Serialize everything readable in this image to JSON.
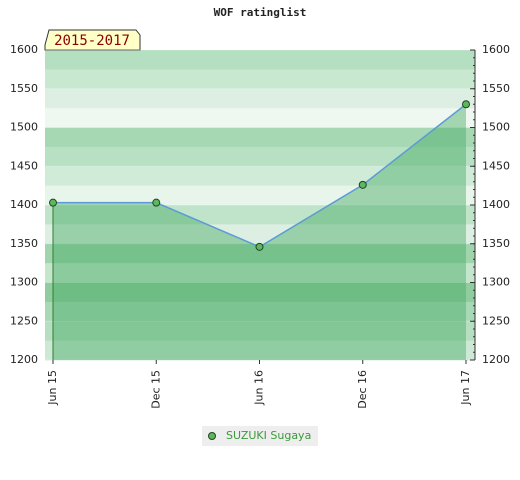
{
  "chart_data": {
    "type": "area",
    "title": "WOF ratinglist",
    "period_label": "2015-2017",
    "categories": [
      "Jun 15",
      "Dec 15",
      "Jun 16",
      "Dec 16",
      "Jun 17"
    ],
    "series": [
      {
        "name": "SUZUKI Sugaya",
        "color": "#5b9bd5",
        "values": [
          1403,
          1403,
          1346,
          1426,
          1530
        ]
      }
    ],
    "ylim": [
      1200,
      1600
    ],
    "yticks": [
      1200,
      1250,
      1300,
      1350,
      1400,
      1450,
      1500,
      1550,
      1600
    ],
    "grid": true
  }
}
